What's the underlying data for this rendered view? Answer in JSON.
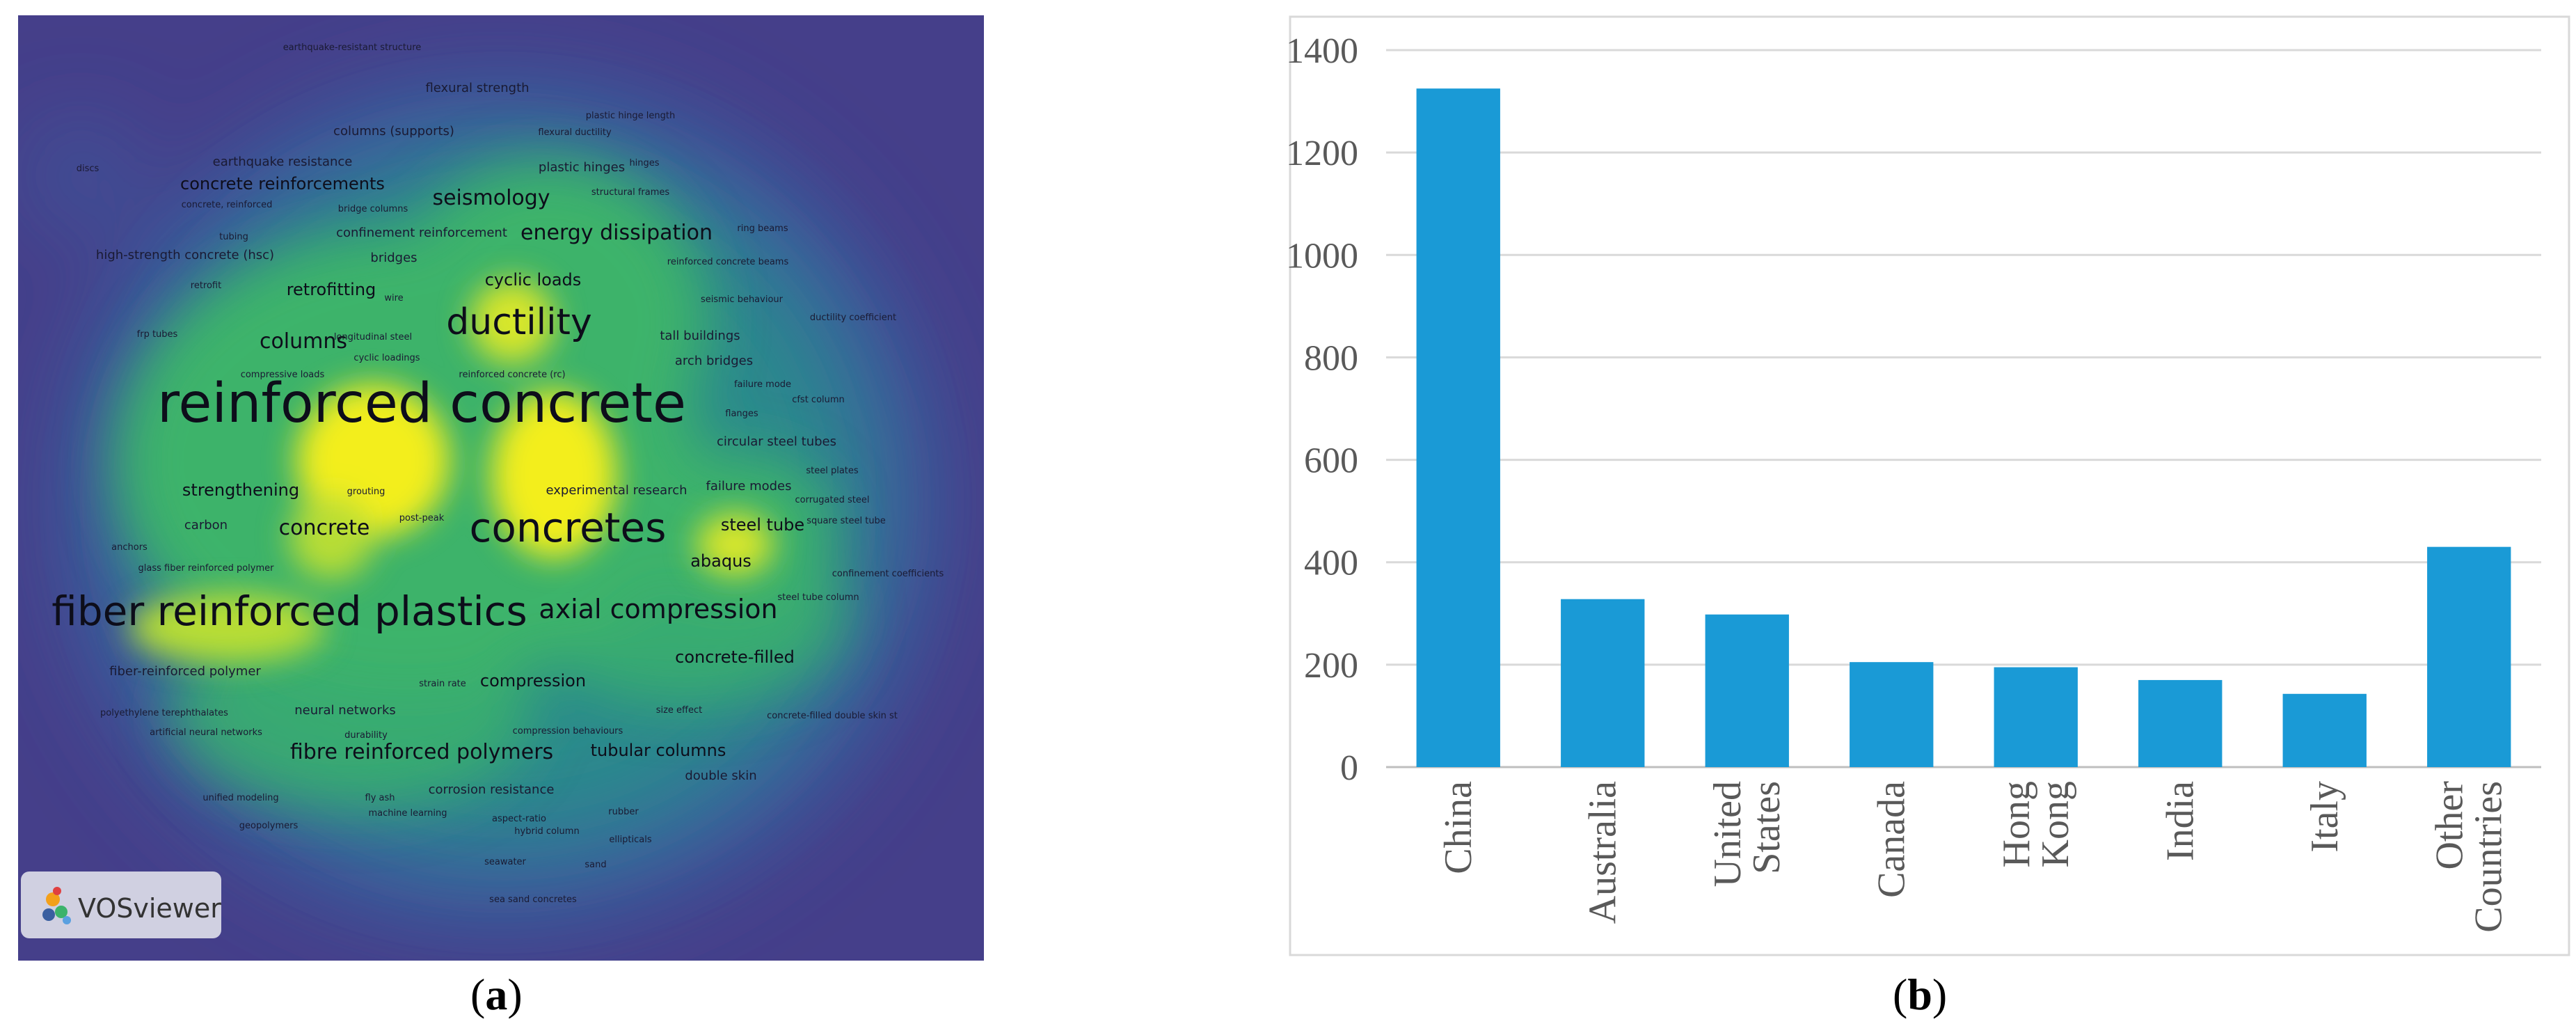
{
  "panels": {
    "a_letter": "a",
    "b_letter": "b"
  },
  "vosviewer": {
    "logo_label": "VOSviewer",
    "colors": {
      "background": "#453f8a",
      "blue": "#3a5fa0",
      "teal": "#2a8a8c",
      "green": "#3cb36b",
      "yellow": "#f3ee1a"
    },
    "terms": [
      {
        "text": "earthquake-resistant structure",
        "weight": 1
      },
      {
        "text": "flexural strength",
        "weight": 2
      },
      {
        "text": "plastic hinge length",
        "weight": 1
      },
      {
        "text": "columns (supports)",
        "weight": 2
      },
      {
        "text": "flexural ductility",
        "weight": 1
      },
      {
        "text": "hinges",
        "weight": 1
      },
      {
        "text": "discs",
        "weight": 1
      },
      {
        "text": "earthquake resistance",
        "weight": 2
      },
      {
        "text": "plastic hinges",
        "weight": 2
      },
      {
        "text": "concrete reinforcements",
        "weight": 3
      },
      {
        "text": "structural frames",
        "weight": 1
      },
      {
        "text": "concrete, reinforced",
        "weight": 1
      },
      {
        "text": "bridge columns",
        "weight": 1
      },
      {
        "text": "seismology",
        "weight": 4
      },
      {
        "text": "ring beams",
        "weight": 1
      },
      {
        "text": "confinement reinforcement",
        "weight": 2
      },
      {
        "text": "energy dissipation",
        "weight": 4
      },
      {
        "text": "tubing",
        "weight": 1
      },
      {
        "text": "high-strength concrete (hsc)",
        "weight": 2
      },
      {
        "text": "bridges",
        "weight": 2
      },
      {
        "text": "reinforced concrete beams",
        "weight": 1
      },
      {
        "text": "retrofit",
        "weight": 1
      },
      {
        "text": "retrofitting",
        "weight": 3
      },
      {
        "text": "wire",
        "weight": 1
      },
      {
        "text": "cyclic loads",
        "weight": 3
      },
      {
        "text": "seismic behaviour",
        "weight": 1
      },
      {
        "text": "ductility coefficient",
        "weight": 1
      },
      {
        "text": "frp tubes",
        "weight": 1
      },
      {
        "text": "longitudinal steel",
        "weight": 1
      },
      {
        "text": "ductility",
        "weight": 7
      },
      {
        "text": "tall buildings",
        "weight": 2
      },
      {
        "text": "columns",
        "weight": 4
      },
      {
        "text": "cyclic loadings",
        "weight": 1
      },
      {
        "text": "arch bridges",
        "weight": 2
      },
      {
        "text": "compressive loads",
        "weight": 1
      },
      {
        "text": "reinforced concrete (rc)",
        "weight": 1
      },
      {
        "text": "failure mode",
        "weight": 1
      },
      {
        "text": "cfst column",
        "weight": 1
      },
      {
        "text": "reinforced concrete",
        "weight": 10
      },
      {
        "text": "flanges",
        "weight": 1
      },
      {
        "text": "circular steel tubes",
        "weight": 2
      },
      {
        "text": "strengthening",
        "weight": 3
      },
      {
        "text": "grouting",
        "weight": 1
      },
      {
        "text": "experimental research",
        "weight": 2
      },
      {
        "text": "failure modes",
        "weight": 2
      },
      {
        "text": "corrugated steel",
        "weight": 1
      },
      {
        "text": "steel plates",
        "weight": 1
      },
      {
        "text": "post-peak",
        "weight": 1
      },
      {
        "text": "square steel tube",
        "weight": 1
      },
      {
        "text": "carbon",
        "weight": 2
      },
      {
        "text": "concrete",
        "weight": 4
      },
      {
        "text": "concretes",
        "weight": 8
      },
      {
        "text": "steel tube",
        "weight": 3
      },
      {
        "text": "anchors",
        "weight": 1
      },
      {
        "text": "abaqus",
        "weight": 3
      },
      {
        "text": "glass fiber reinforced polymer",
        "weight": 1
      },
      {
        "text": "confinement coefficients",
        "weight": 1
      },
      {
        "text": "steel tube column",
        "weight": 1
      },
      {
        "text": "fiber reinforced plastics",
        "weight": 8
      },
      {
        "text": "axial compression",
        "weight": 5
      },
      {
        "text": "fiber-reinforced polymer",
        "weight": 2
      },
      {
        "text": "concrete-filled",
        "weight": 3
      },
      {
        "text": "strain rate",
        "weight": 1
      },
      {
        "text": "compression",
        "weight": 3
      },
      {
        "text": "polyethylene terephthalates",
        "weight": 1
      },
      {
        "text": "neural networks",
        "weight": 2
      },
      {
        "text": "size effect",
        "weight": 1
      },
      {
        "text": "concrete-filled double skin st",
        "weight": 1
      },
      {
        "text": "artificial neural networks",
        "weight": 1
      },
      {
        "text": "durability",
        "weight": 1
      },
      {
        "text": "compression behaviours",
        "weight": 1
      },
      {
        "text": "fibre reinforced polymers",
        "weight": 4
      },
      {
        "text": "tubular columns",
        "weight": 3
      },
      {
        "text": "double skin",
        "weight": 2
      },
      {
        "text": "corrosion resistance",
        "weight": 2
      },
      {
        "text": "unified modeling",
        "weight": 1
      },
      {
        "text": "fly ash",
        "weight": 1
      },
      {
        "text": "machine learning",
        "weight": 1
      },
      {
        "text": "rubber",
        "weight": 1
      },
      {
        "text": "aspect-ratio",
        "weight": 1
      },
      {
        "text": "geopolymers",
        "weight": 1
      },
      {
        "text": "hybrid column",
        "weight": 1
      },
      {
        "text": "ellipticals",
        "weight": 1
      },
      {
        "text": "seawater",
        "weight": 1
      },
      {
        "text": "sand",
        "weight": 1
      },
      {
        "text": "sea sand concretes",
        "weight": 1
      }
    ]
  },
  "chart_data": {
    "type": "bar",
    "title": "",
    "xlabel": "",
    "ylabel": "",
    "categories": [
      [
        "China"
      ],
      [
        "Australia"
      ],
      [
        "United",
        "States"
      ],
      [
        "Canada"
      ],
      [
        "Hong",
        "Kong"
      ],
      [
        "India"
      ],
      [
        "Italy"
      ],
      [
        "Other",
        "Countries"
      ]
    ],
    "values": [
      1325,
      328,
      298,
      205,
      195,
      170,
      143,
      430
    ],
    "ylim": [
      0,
      1400
    ],
    "yticks": [
      "0",
      "200",
      "400",
      "600",
      "800",
      "1000",
      "1200",
      "1400"
    ],
    "grid": true,
    "legend": "none",
    "bar_color": "#1a9ad6"
  }
}
